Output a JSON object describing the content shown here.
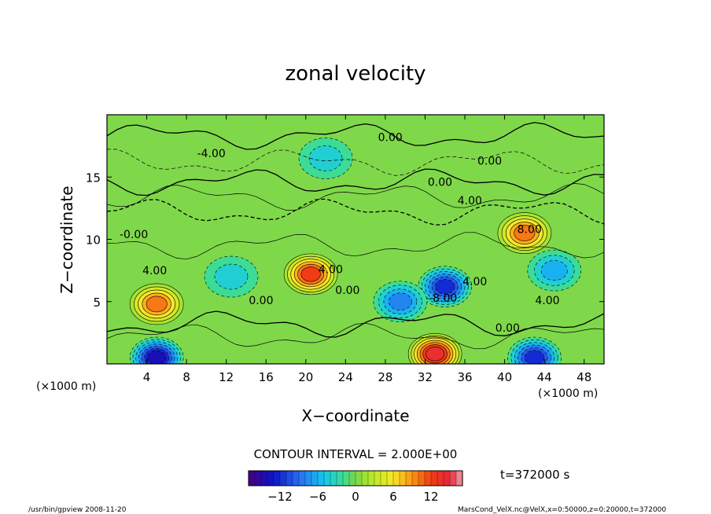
{
  "chart_data": {
    "type": "heatmap",
    "title": "zonal velocity",
    "xlabel": "X−coordinate",
    "ylabel": "Z−coordinate",
    "x_unit_left": "(×1000 m)",
    "x_unit_right": "(×1000 m)",
    "xlim": [
      0,
      50
    ],
    "ylim": [
      0,
      20
    ],
    "xticks": [
      4,
      8,
      12,
      16,
      20,
      24,
      28,
      32,
      36,
      40,
      44,
      48
    ],
    "yticks": [
      5,
      10,
      15
    ],
    "contour_interval_text": "CONTOUR INTERVAL = 2.000E+00",
    "time_text": "t=372000 s",
    "colorbar": {
      "range": [
        -17,
        17
      ],
      "ticks": [
        -12,
        -6,
        0,
        6,
        12
      ],
      "tick_labels": [
        "−12",
        "−6",
        "0",
        "6",
        "12"
      ]
    },
    "contour_labels": [
      "0.00",
      "-4.00",
      "0.00",
      "0.00",
      "4.00",
      "8.00",
      "-0.00",
      "4.00",
      "4.00",
      "0.00",
      "-8.00",
      "4.00",
      "4.00",
      "0.00",
      "0.00"
    ],
    "features": [
      {
        "x": 5,
        "z": 4.8,
        "value": 10
      },
      {
        "x": 20.5,
        "z": 7.2,
        "value": 12
      },
      {
        "x": 34,
        "z": 6.2,
        "value": -12
      },
      {
        "x": 29.5,
        "z": 5.0,
        "value": -8
      },
      {
        "x": 42,
        "z": 10.5,
        "value": 10
      },
      {
        "x": 33,
        "z": 0.8,
        "value": 14
      },
      {
        "x": 5,
        "z": 0.5,
        "value": -14
      },
      {
        "x": 43,
        "z": 0.5,
        "value": -12
      },
      {
        "x": 22,
        "z": 16.5,
        "value": -4
      },
      {
        "x": 45,
        "z": 7.5,
        "value": -6
      },
      {
        "x": 12.5,
        "z": 7.0,
        "value": -4
      }
    ]
  },
  "footer": {
    "left": "/usr/bin/gpview  2008-11-20",
    "right": "MarsCond_VelX.nc@VelX,x=0:50000,z=0:20000,t=372000"
  },
  "colors": {
    "background": "#ffffff",
    "field_base": "#7fd84a",
    "positive": "#ff6a00",
    "negative": "#0b1fd0"
  }
}
